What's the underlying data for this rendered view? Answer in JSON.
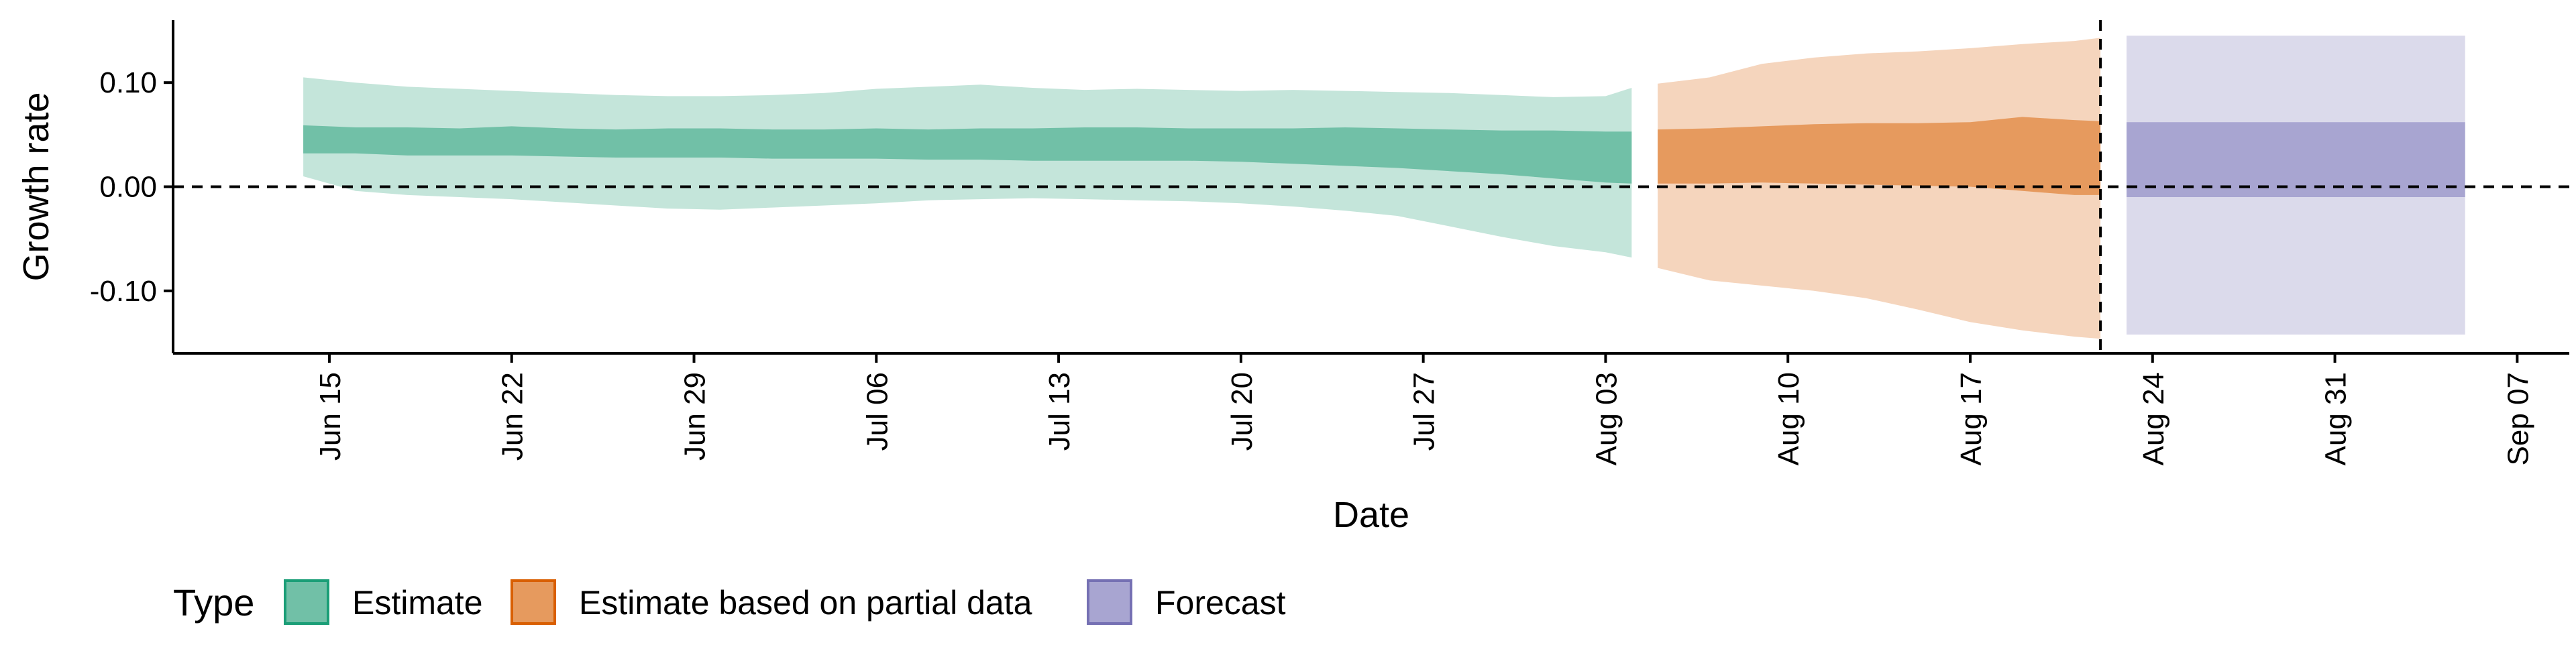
{
  "chart_data": {
    "type": "area",
    "title": "",
    "xlabel": "Date",
    "ylabel": "Growth rate",
    "x_range": [
      "2020-06-09",
      "2020-09-09"
    ],
    "ylim": [
      -0.16,
      0.16
    ],
    "x_ticks": [
      {
        "date": "2020-06-15",
        "label": "Jun 15"
      },
      {
        "date": "2020-06-22",
        "label": "Jun 22"
      },
      {
        "date": "2020-06-29",
        "label": "Jun 29"
      },
      {
        "date": "2020-07-06",
        "label": "Jul 06"
      },
      {
        "date": "2020-07-13",
        "label": "Jul 13"
      },
      {
        "date": "2020-07-20",
        "label": "Jul 20"
      },
      {
        "date": "2020-07-27",
        "label": "Jul 27"
      },
      {
        "date": "2020-08-03",
        "label": "Aug 03"
      },
      {
        "date": "2020-08-10",
        "label": "Aug 10"
      },
      {
        "date": "2020-08-17",
        "label": "Aug 17"
      },
      {
        "date": "2020-08-24",
        "label": "Aug 24"
      },
      {
        "date": "2020-08-31",
        "label": "Aug 31"
      },
      {
        "date": "2020-09-07",
        "label": "Sep 07"
      }
    ],
    "y_ticks": [
      {
        "value": 0.1,
        "label": "0.10"
      },
      {
        "value": 0.0,
        "label": "0.00"
      },
      {
        "value": -0.1,
        "label": "-0.10"
      }
    ],
    "reference_lines": {
      "y": 0.0,
      "x": "2020-08-22"
    },
    "grid": false,
    "legend": {
      "title": "Type",
      "placement": "bottom",
      "entries": [
        "Estimate",
        "Estimate based on partial data",
        "Forecast"
      ]
    },
    "series": [
      {
        "name": "Estimate",
        "color": "#1b9e77",
        "fill_inner": "#71c0a7",
        "fill_outer": "#c4e5da",
        "x": [
          "2020-06-14",
          "2020-06-16",
          "2020-06-18",
          "2020-06-20",
          "2020-06-22",
          "2020-06-24",
          "2020-06-26",
          "2020-06-28",
          "2020-06-30",
          "2020-07-02",
          "2020-07-04",
          "2020-07-06",
          "2020-07-08",
          "2020-07-10",
          "2020-07-12",
          "2020-07-14",
          "2020-07-16",
          "2020-07-18",
          "2020-07-20",
          "2020-07-22",
          "2020-07-24",
          "2020-07-26",
          "2020-07-28",
          "2020-07-30",
          "2020-08-01",
          "2020-08-03",
          "2020-08-04"
        ],
        "upper_90": [
          0.105,
          0.1,
          0.096,
          0.094,
          0.092,
          0.09,
          0.088,
          0.087,
          0.087,
          0.088,
          0.09,
          0.094,
          0.096,
          0.098,
          0.095,
          0.093,
          0.094,
          0.093,
          0.092,
          0.093,
          0.092,
          0.091,
          0.09,
          0.088,
          0.086,
          0.087,
          0.095
        ],
        "upper_50": [
          0.059,
          0.057,
          0.057,
          0.056,
          0.058,
          0.056,
          0.055,
          0.056,
          0.056,
          0.055,
          0.055,
          0.056,
          0.055,
          0.056,
          0.056,
          0.057,
          0.057,
          0.056,
          0.056,
          0.056,
          0.057,
          0.056,
          0.055,
          0.054,
          0.054,
          0.053,
          0.053
        ],
        "lower_50": [
          0.032,
          0.032,
          0.03,
          0.03,
          0.03,
          0.029,
          0.028,
          0.028,
          0.028,
          0.027,
          0.027,
          0.027,
          0.026,
          0.026,
          0.025,
          0.025,
          0.025,
          0.025,
          0.024,
          0.022,
          0.02,
          0.018,
          0.015,
          0.012,
          0.008,
          0.004,
          0.003
        ],
        "lower_90": [
          0.01,
          -0.004,
          -0.008,
          -0.01,
          -0.012,
          -0.015,
          -0.018,
          -0.021,
          -0.022,
          -0.02,
          -0.018,
          -0.016,
          -0.013,
          -0.012,
          -0.011,
          -0.012,
          -0.013,
          -0.014,
          -0.016,
          -0.019,
          -0.023,
          -0.028,
          -0.038,
          -0.048,
          -0.057,
          -0.063,
          -0.068
        ]
      },
      {
        "name": "Estimate based on partial data",
        "color": "#d95f02",
        "fill_inner": "#e69a5e",
        "fill_outer": "#f5d5bd",
        "x": [
          "2020-08-05",
          "2020-08-07",
          "2020-08-09",
          "2020-08-11",
          "2020-08-13",
          "2020-08-15",
          "2020-08-17",
          "2020-08-19",
          "2020-08-21",
          "2020-08-22"
        ],
        "upper_90": [
          0.099,
          0.105,
          0.118,
          0.124,
          0.128,
          0.13,
          0.133,
          0.137,
          0.14,
          0.143
        ],
        "upper_50": [
          0.055,
          0.056,
          0.058,
          0.06,
          0.061,
          0.061,
          0.062,
          0.067,
          0.064,
          0.063
        ],
        "lower_50": [
          0.003,
          0.003,
          0.004,
          0.003,
          0.002,
          0.001,
          0.0,
          -0.004,
          -0.008,
          -0.008
        ],
        "lower_90": [
          -0.078,
          -0.09,
          -0.095,
          -0.1,
          -0.107,
          -0.118,
          -0.13,
          -0.138,
          -0.144,
          -0.146
        ]
      },
      {
        "name": "Forecast",
        "color": "#7570b3",
        "fill_inner": "#a8a5d1",
        "fill_outer": "#dbdaeb",
        "x": [
          "2020-08-23",
          "2020-09-05"
        ],
        "upper_90": [
          0.145,
          0.145
        ],
        "upper_50": [
          0.062,
          0.062
        ],
        "lower_50": [
          -0.01,
          -0.01
        ],
        "lower_90": [
          -0.142,
          -0.142
        ]
      }
    ]
  }
}
